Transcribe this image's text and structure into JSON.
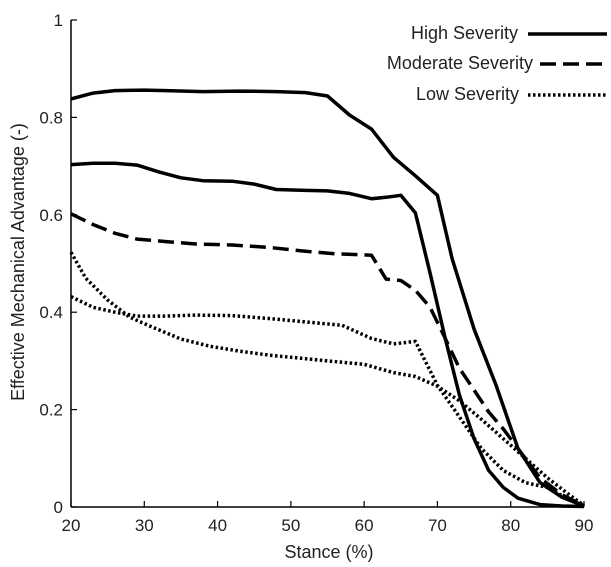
{
  "chart_data": {
    "type": "line",
    "title": "",
    "xlabel": "Stance (%)",
    "ylabel": "Effective Mechanical Advantage (-)",
    "xlim": [
      20,
      90
    ],
    "ylim": [
      0,
      1
    ],
    "xticks": [
      20,
      30,
      40,
      50,
      60,
      70,
      80,
      90
    ],
    "yticks": [
      0,
      0.2,
      0.4,
      0.6,
      0.8,
      1
    ],
    "ytick_labels": [
      "0",
      "0.2",
      "0.4",
      "0.6",
      "0.8",
      "1"
    ],
    "grid": false,
    "legend_position": "top-right",
    "series": [
      {
        "name": "High Severity",
        "style": "solid",
        "color": "#000000",
        "x": [
          20,
          23,
          26,
          30,
          33,
          38,
          43,
          48,
          52,
          55,
          58,
          61,
          64,
          67,
          70,
          72,
          75,
          78,
          81,
          84,
          87,
          90
        ],
        "y": [
          0.838,
          0.85,
          0.855,
          0.856,
          0.855,
          0.853,
          0.854,
          0.853,
          0.851,
          0.844,
          0.805,
          0.776,
          0.718,
          0.68,
          0.64,
          0.51,
          0.365,
          0.25,
          0.12,
          0.05,
          0.02,
          0.002
        ]
      },
      {
        "name": "High Severity",
        "style": "solid",
        "color": "#000000",
        "x": [
          20,
          23,
          26,
          29,
          32,
          35,
          38,
          42,
          45,
          48,
          52,
          55,
          58,
          61,
          63,
          65,
          67,
          69,
          71,
          73,
          75,
          77,
          79,
          81,
          84,
          87,
          90
        ],
        "y": [
          0.703,
          0.706,
          0.706,
          0.702,
          0.688,
          0.676,
          0.67,
          0.669,
          0.663,
          0.652,
          0.65,
          0.649,
          0.644,
          0.633,
          0.636,
          0.64,
          0.604,
          0.48,
          0.35,
          0.23,
          0.14,
          0.075,
          0.04,
          0.018,
          0.005,
          0.002,
          0.001
        ]
      },
      {
        "name": "Moderate Severity",
        "style": "dashed",
        "color": "#000000",
        "x": [
          20,
          23,
          26,
          29,
          33,
          37,
          42,
          47,
          52,
          56,
          61,
          63,
          65,
          67,
          69,
          71,
          73,
          75,
          77,
          79,
          81,
          84,
          87,
          90
        ],
        "y": [
          0.602,
          0.58,
          0.562,
          0.55,
          0.545,
          0.54,
          0.538,
          0.533,
          0.525,
          0.52,
          0.517,
          0.468,
          0.465,
          0.445,
          0.41,
          0.348,
          0.285,
          0.24,
          0.195,
          0.16,
          0.12,
          0.06,
          0.025,
          0.003
        ]
      },
      {
        "name": "Low Severity",
        "style": "dotted",
        "color": "#000000",
        "x": [
          20,
          23,
          26,
          29,
          33,
          37,
          42,
          47,
          52,
          57,
          61,
          64,
          67,
          70,
          73,
          76,
          79,
          82,
          85,
          88,
          90
        ],
        "y": [
          0.432,
          0.41,
          0.4,
          0.392,
          0.392,
          0.394,
          0.393,
          0.387,
          0.38,
          0.373,
          0.346,
          0.335,
          0.34,
          0.25,
          0.185,
          0.12,
          0.075,
          0.05,
          0.04,
          0.015,
          0.003
        ]
      },
      {
        "name": "Low Severity",
        "style": "dotted",
        "color": "#000000",
        "x": [
          20,
          22,
          25,
          28,
          31,
          35,
          39,
          43,
          47,
          51,
          55,
          60,
          64,
          67,
          70,
          73,
          76,
          79,
          82,
          85,
          88,
          90
        ],
        "y": [
          0.523,
          0.47,
          0.425,
          0.39,
          0.37,
          0.345,
          0.33,
          0.32,
          0.312,
          0.306,
          0.3,
          0.293,
          0.276,
          0.268,
          0.248,
          0.218,
          0.18,
          0.14,
          0.1,
          0.06,
          0.025,
          0.003
        ]
      }
    ]
  },
  "legend": [
    {
      "label": "High Severity",
      "style": "solid"
    },
    {
      "label": "Moderate Severity",
      "style": "dashed"
    },
    {
      "label": "Low Severity",
      "style": "dotted"
    }
  ]
}
